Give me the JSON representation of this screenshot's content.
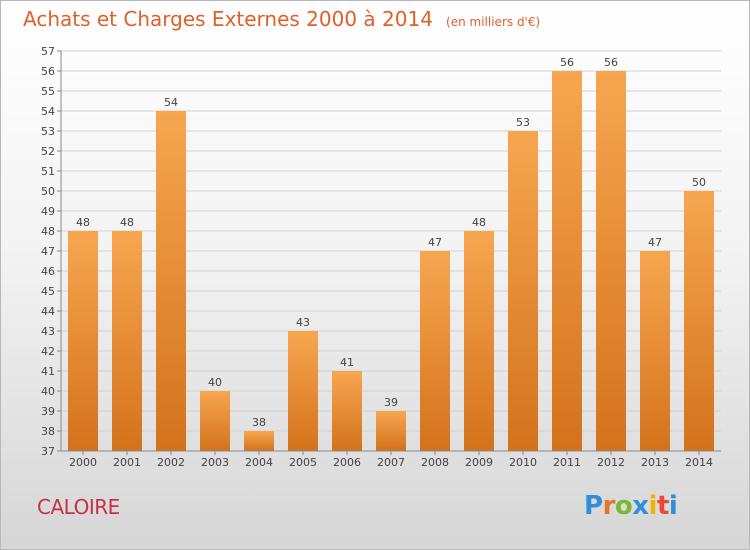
{
  "chart_data": {
    "type": "bar",
    "title": "Achats et Charges Externes 2000 à 2014",
    "subtitle": "(en milliers d'€)",
    "categories": [
      "2000",
      "2001",
      "2002",
      "2003",
      "2004",
      "2005",
      "2006",
      "2007",
      "2008",
      "2009",
      "2010",
      "2011",
      "2012",
      "2013",
      "2014"
    ],
    "values": [
      48,
      48,
      54,
      40,
      38,
      43,
      41,
      39,
      47,
      48,
      53,
      56,
      56,
      47,
      50
    ],
    "ylim": [
      37,
      57
    ],
    "yticks": [
      37,
      38,
      39,
      40,
      41,
      42,
      43,
      44,
      45,
      46,
      47,
      48,
      49,
      50,
      51,
      52,
      53,
      54,
      55,
      56,
      57
    ],
    "grid": true,
    "bar_color_top": "#f7a650",
    "bar_color_bottom": "#d4721c"
  },
  "footer": {
    "commune": "CALOIRE",
    "logo_text": "Proxiti",
    "logo_colors": [
      "#2f8fd8",
      "#e8742a",
      "#78b832",
      "#2f8fd8",
      "#f0b400",
      "#e84a3a",
      "#2f8fd8"
    ]
  }
}
